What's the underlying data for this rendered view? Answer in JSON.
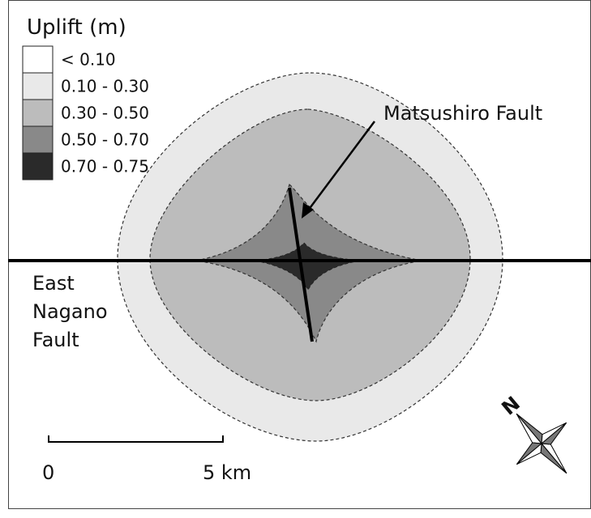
{
  "legend": {
    "title": "Uplift (m)",
    "items": [
      {
        "label": "< 0.10",
        "color": "#ffffff"
      },
      {
        "label": "0.10 - 0.30",
        "color": "#e9e9e9"
      },
      {
        "label": "0.30 - 0.50",
        "color": "#bcbcbc"
      },
      {
        "label": "0.50 - 0.70",
        "color": "#898989"
      },
      {
        "label": "0.70 - 0.75",
        "color": "#2a2a2a"
      }
    ]
  },
  "faults": {
    "matsushiro": "Matsushiro Fault",
    "east_nagano": [
      "East",
      "Nagano",
      "Fault"
    ]
  },
  "scale_bar": {
    "start": "0",
    "end": "5 km"
  },
  "compass": "N"
}
